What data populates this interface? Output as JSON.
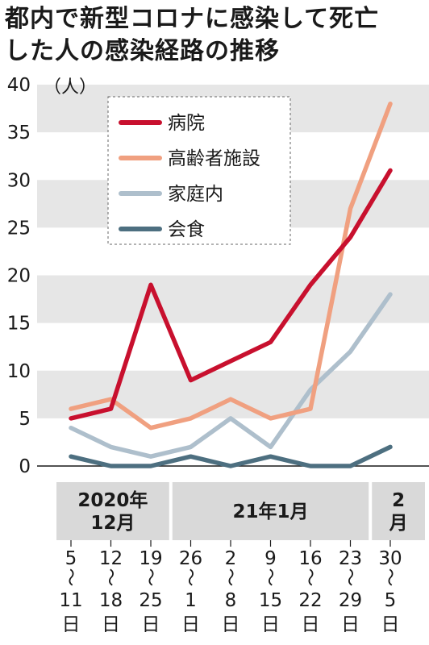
{
  "title_lines": [
    "都内で新型コロナに感染して死亡",
    "した人の感染経路の推移"
  ],
  "chart_data": {
    "type": "line",
    "ylabel": "（人）",
    "ylim": [
      0,
      40
    ],
    "yticks": [
      0,
      5,
      10,
      15,
      20,
      25,
      30,
      35,
      40
    ],
    "categories": [
      "5〜11日",
      "12〜18日",
      "19〜25日",
      "26〜1日",
      "2〜8日",
      "9〜15日",
      "16〜22日",
      "23〜29日",
      "30〜5日"
    ],
    "date_ticks": [
      {
        "start": "5",
        "sep": "〜",
        "end": "11",
        "unit": "日"
      },
      {
        "start": "12",
        "sep": "〜",
        "end": "18",
        "unit": "日"
      },
      {
        "start": "19",
        "sep": "〜",
        "end": "25",
        "unit": "日"
      },
      {
        "start": "26",
        "sep": "〜",
        "end": "1",
        "unit": "日"
      },
      {
        "start": "2",
        "sep": "〜",
        "end": "8",
        "unit": "日"
      },
      {
        "start": "9",
        "sep": "〜",
        "end": "15",
        "unit": "日"
      },
      {
        "start": "16",
        "sep": "〜",
        "end": "22",
        "unit": "日"
      },
      {
        "start": "23",
        "sep": "〜",
        "end": "29",
        "unit": "日"
      },
      {
        "start": "30",
        "sep": "〜",
        "end": "5",
        "unit": "日"
      }
    ],
    "period_bands": [
      {
        "lines": [
          "2020年",
          "12月"
        ],
        "from": 0,
        "to": 2
      },
      {
        "lines": [
          "21年1月"
        ],
        "from": 3,
        "to": 7
      },
      {
        "lines": [
          "2",
          "月"
        ],
        "from": 8,
        "to": 8
      }
    ],
    "series": [
      {
        "name": "病院",
        "color": "#c8102e",
        "values": [
          5,
          6,
          19,
          9,
          11,
          13,
          19,
          24,
          31
        ]
      },
      {
        "name": "高齢者施設",
        "color": "#f0a080",
        "values": [
          6,
          7,
          4,
          5,
          7,
          5,
          6,
          27,
          38
        ]
      },
      {
        "name": "家庭内",
        "color": "#aebfcc",
        "values": [
          4,
          2,
          1,
          2,
          5,
          2,
          8,
          12,
          18
        ]
      },
      {
        "name": "会食",
        "color": "#4d6f80",
        "values": [
          1,
          0,
          0,
          1,
          0,
          1,
          0,
          0,
          2
        ]
      }
    ],
    "legend_position": "top-left",
    "grid": "alternating horizontal bands"
  }
}
